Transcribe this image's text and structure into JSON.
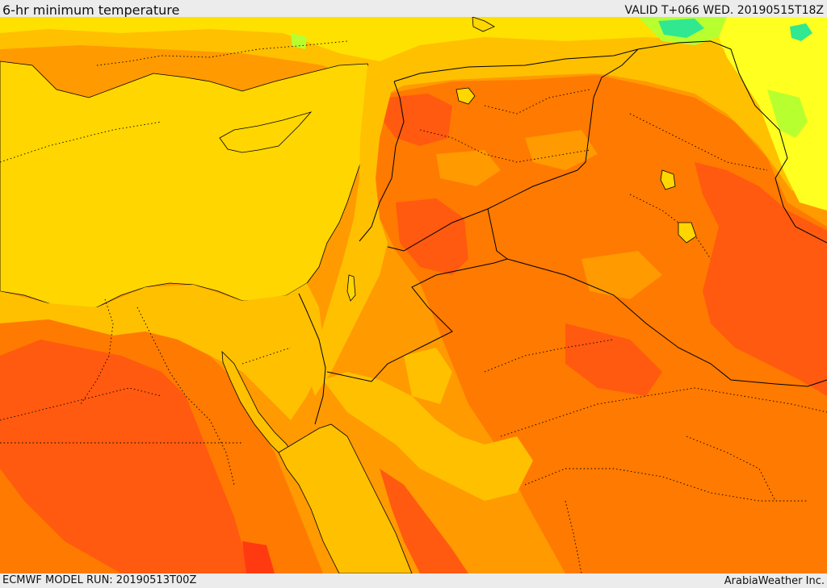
{
  "header": {
    "title": "6-hr minimum temperature",
    "valid_time": "VALID T+066 WED. 20190515T18Z"
  },
  "footer": {
    "model_run": "ECMWF MODEL RUN: 20190513T00Z",
    "credit": "ArabiaWeather Inc."
  },
  "palette": {
    "sea_yellow": "#ffd600",
    "light_yellow": "#ffe100",
    "yellow_orange": "#ffc000",
    "orange": "#ff9a00",
    "deep_orange": "#ff7a00",
    "red_orange": "#ff5a10",
    "red": "#ff3a10",
    "pale_yellow": "#ffff20",
    "lime": "#b8ff30",
    "cyan_green": "#30e890"
  },
  "map": {
    "field": "6-hr minimum temperature",
    "region": "Eastern Mediterranean / Levant / Arabian Peninsula"
  }
}
